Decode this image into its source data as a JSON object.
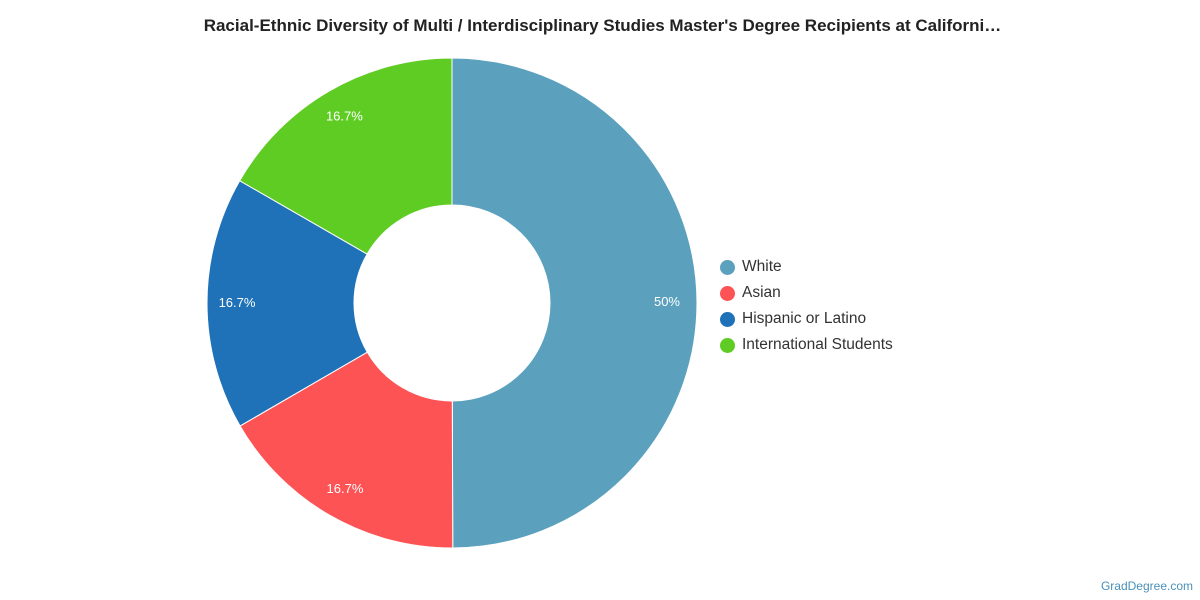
{
  "chart_data": {
    "type": "pie",
    "title": "Racial-Ethnic Diversity of Multi / Interdisciplinary Studies Master's Degree Recipients at Californi…",
    "donut": true,
    "legend_position": "right",
    "slices": [
      {
        "label": "White",
        "value": 50,
        "display": "50%",
        "color": "#5ba1be"
      },
      {
        "label": "Asian",
        "value": 16.7,
        "display": "16.7%",
        "color": "#fe5355"
      },
      {
        "label": "Hispanic or Latino",
        "value": 16.7,
        "display": "16.7%",
        "color": "#1f72b8"
      },
      {
        "label": "International Students",
        "value": 16.7,
        "display": "16.7%",
        "color": "#5fcc24"
      }
    ]
  },
  "credit": "GradDegree.com"
}
